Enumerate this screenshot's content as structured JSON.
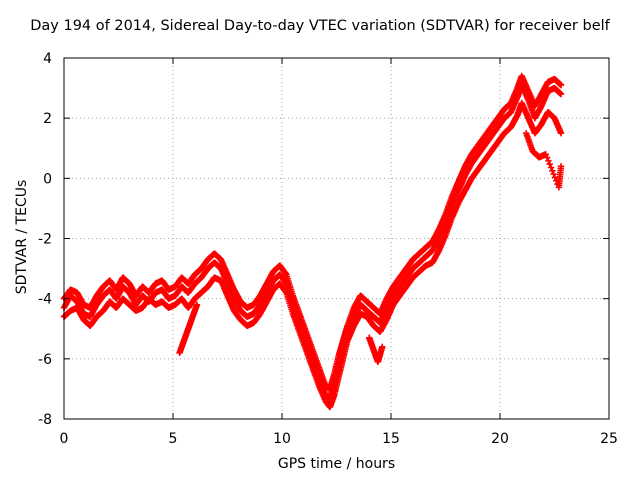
{
  "chart_data": {
    "type": "scatter",
    "title": "Day 194 of 2014, Sidereal Day-to-day VTEC variation (SDTVAR) for receiver belf",
    "xlabel": "GPS time / hours",
    "ylabel": "SDTVAR / TECUs",
    "xlim": [
      0,
      25
    ],
    "ylim": [
      -8,
      4
    ],
    "xticks": [
      "0",
      "5",
      "10",
      "15",
      "20",
      "25"
    ],
    "yticks": [
      "-8",
      "-6",
      "-4",
      "-2",
      "0",
      "2",
      "4"
    ],
    "grid": true,
    "marker": "+",
    "color": "#ff0000",
    "series": [
      {
        "x": [
          0.0,
          0.3,
          0.6,
          0.9,
          1.2,
          1.5,
          1.8,
          2.1,
          2.4,
          2.7,
          3.0,
          3.3,
          3.6,
          3.9,
          4.2,
          4.5,
          4.8,
          5.1,
          5.4,
          5.7,
          6.0,
          6.3,
          6.6,
          6.9,
          7.2,
          7.5,
          7.8,
          8.1,
          8.4,
          8.7,
          9.0,
          9.3,
          9.6,
          9.9,
          10.2,
          10.5,
          10.8,
          11.1,
          11.4,
          11.7,
          12.0,
          12.2,
          12.4,
          12.6,
          12.8,
          13.0,
          13.3,
          13.6,
          13.9,
          14.2,
          14.5,
          14.8,
          15.1,
          15.4,
          15.7,
          16.0,
          16.3,
          16.6,
          16.9,
          17.2,
          17.5,
          17.8,
          18.1,
          18.4,
          18.7,
          19.0,
          19.3,
          19.6,
          19.9,
          20.2,
          20.5,
          20.8,
          21.0,
          21.3,
          21.6,
          21.9,
          22.2,
          22.5,
          22.8
        ],
        "y": [
          -4.3,
          -3.9,
          -4.1,
          -4.5,
          -4.6,
          -4.2,
          -3.9,
          -3.7,
          -4.0,
          -3.6,
          -3.8,
          -4.2,
          -3.9,
          -4.1,
          -3.8,
          -3.7,
          -4.0,
          -3.9,
          -3.6,
          -3.8,
          -3.5,
          -3.3,
          -3.0,
          -2.8,
          -3.0,
          -3.5,
          -4.0,
          -4.4,
          -4.6,
          -4.5,
          -4.2,
          -3.8,
          -3.4,
          -3.2,
          -3.5,
          -4.2,
          -4.8,
          -5.4,
          -6.0,
          -6.6,
          -7.2,
          -7.3,
          -6.8,
          -6.2,
          -5.7,
          -5.2,
          -4.6,
          -4.2,
          -4.4,
          -4.6,
          -4.8,
          -4.3,
          -3.9,
          -3.6,
          -3.3,
          -3.0,
          -2.8,
          -2.6,
          -2.4,
          -2.0,
          -1.5,
          -0.9,
          -0.4,
          0.1,
          0.5,
          0.8,
          1.1,
          1.4,
          1.7,
          2.0,
          2.2,
          2.7,
          3.1,
          2.6,
          2.0,
          2.4,
          2.9,
          3.0,
          2.8
        ]
      },
      {
        "x": [
          0.0,
          0.3,
          0.6,
          0.9,
          1.2,
          1.5,
          1.8,
          2.1,
          2.4,
          2.7,
          3.0,
          3.3,
          3.6,
          3.9,
          4.2,
          4.5,
          4.8,
          5.1,
          5.4,
          5.7,
          6.0,
          6.3,
          6.6,
          6.9,
          7.2,
          7.5,
          7.8,
          8.1,
          8.4,
          8.7,
          9.0,
          9.3,
          9.6,
          9.9,
          10.2,
          10.5,
          10.8,
          11.1,
          11.4,
          11.7,
          12.0,
          12.2,
          12.4,
          12.6,
          12.8,
          13.0,
          13.3,
          13.6,
          13.9,
          14.2,
          14.5,
          14.8,
          15.1,
          15.4,
          15.7,
          16.0,
          16.3,
          16.6,
          16.9,
          17.2,
          17.5,
          17.8,
          18.1,
          18.4,
          18.7,
          19.0,
          19.3,
          19.6,
          19.9,
          20.2,
          20.5,
          20.8,
          21.0,
          21.3,
          21.6,
          21.9,
          22.2,
          22.5,
          22.8
        ],
        "y": [
          -4.6,
          -4.4,
          -4.3,
          -4.7,
          -4.9,
          -4.6,
          -4.4,
          -4.1,
          -4.3,
          -4.0,
          -4.2,
          -4.4,
          -4.3,
          -4.0,
          -4.2,
          -4.1,
          -4.3,
          -4.2,
          -4.0,
          -4.3,
          -4.0,
          -3.8,
          -3.6,
          -3.3,
          -3.4,
          -3.9,
          -4.4,
          -4.7,
          -4.9,
          -4.8,
          -4.5,
          -4.1,
          -3.7,
          -3.5,
          -3.8,
          -4.5,
          -5.1,
          -5.7,
          -6.3,
          -6.9,
          -7.4,
          -7.6,
          -7.2,
          -6.6,
          -6.0,
          -5.4,
          -4.9,
          -4.5,
          -4.6,
          -4.9,
          -5.1,
          -4.7,
          -4.2,
          -3.9,
          -3.6,
          -3.3,
          -3.1,
          -2.9,
          -2.8,
          -2.4,
          -1.9,
          -1.3,
          -0.8,
          -0.4,
          0.0,
          0.3,
          0.6,
          0.9,
          1.2,
          1.5,
          1.7,
          2.1,
          2.5,
          2.0,
          1.5,
          1.8,
          2.2,
          2.0,
          1.5
        ]
      },
      {
        "x": [
          0.0,
          0.3,
          0.6,
          0.9,
          1.2,
          1.5,
          1.8,
          2.1,
          2.4,
          2.7,
          3.0,
          3.3,
          3.6,
          3.9,
          4.2,
          4.5,
          4.8,
          5.1,
          5.4,
          5.7,
          6.0,
          6.3,
          6.6,
          6.9,
          7.2,
          7.5,
          7.8,
          8.1,
          8.4,
          8.7,
          9.0,
          9.3,
          9.6,
          9.9,
          10.2,
          10.5,
          10.8,
          11.1,
          11.4,
          11.7,
          12.0,
          12.2,
          12.4,
          12.6,
          12.8,
          13.0,
          13.3,
          13.6,
          13.9,
          14.2,
          14.5,
          14.8,
          15.1,
          15.4,
          15.7,
          16.0,
          16.3,
          16.6,
          16.9,
          17.2,
          17.5,
          17.8,
          18.1,
          18.4,
          18.7,
          19.0,
          19.3,
          19.6,
          19.9,
          20.2,
          20.5,
          20.8,
          21.0,
          21.3,
          21.6,
          21.9,
          22.2,
          22.5,
          22.8
        ],
        "y": [
          -4.0,
          -3.7,
          -3.8,
          -4.2,
          -4.3,
          -3.9,
          -3.6,
          -3.4,
          -3.7,
          -3.3,
          -3.5,
          -3.9,
          -3.6,
          -3.8,
          -3.5,
          -3.4,
          -3.7,
          -3.6,
          -3.3,
          -3.5,
          -3.2,
          -3.0,
          -2.7,
          -2.5,
          -2.7,
          -3.2,
          -3.7,
          -4.1,
          -4.3,
          -4.2,
          -3.9,
          -3.5,
          -3.1,
          -2.9,
          -3.2,
          -3.9,
          -4.5,
          -5.1,
          -5.7,
          -6.3,
          -6.9,
          -7.0,
          -6.5,
          -5.9,
          -5.4,
          -4.9,
          -4.3,
          -3.9,
          -4.1,
          -4.3,
          -4.5,
          -4.0,
          -3.6,
          -3.3,
          -3.0,
          -2.7,
          -2.5,
          -2.3,
          -2.1,
          -1.7,
          -1.2,
          -0.6,
          -0.1,
          0.4,
          0.8,
          1.1,
          1.4,
          1.7,
          2.0,
          2.3,
          2.5,
          3.0,
          3.4,
          2.9,
          2.4,
          2.8,
          3.2,
          3.3,
          3.1
        ]
      },
      {
        "x": [
          5.3,
          5.5,
          5.7,
          5.9,
          6.1,
          14.0,
          14.2,
          14.4,
          14.6,
          21.2,
          21.5,
          21.8,
          22.1,
          22.7,
          22.8
        ],
        "y": [
          -5.8,
          -5.4,
          -5.0,
          -4.6,
          -4.2,
          -5.3,
          -5.7,
          -6.1,
          -5.6,
          1.5,
          0.9,
          0.7,
          0.8,
          -0.3,
          0.4
        ]
      }
    ]
  }
}
